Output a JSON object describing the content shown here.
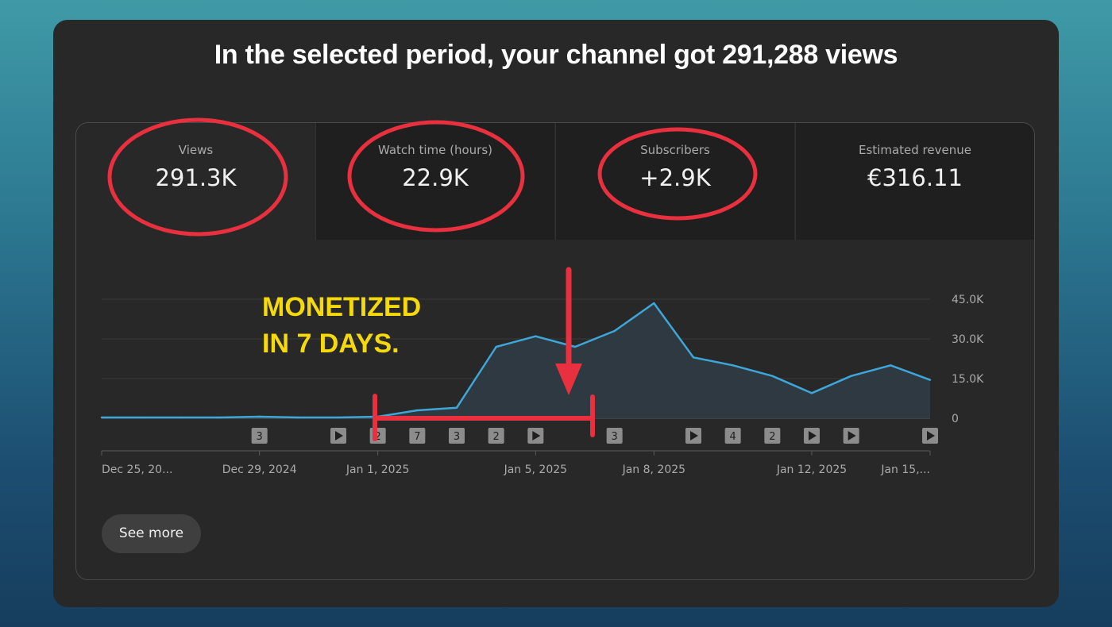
{
  "headline": "In the selected period, your channel got 291,288 views",
  "metrics": [
    {
      "label": "Views",
      "value": "291.3K"
    },
    {
      "label": "Watch time (hours)",
      "value": "22.9K"
    },
    {
      "label": "Subscribers",
      "value": "+2.9K"
    },
    {
      "label": "Estimated revenue",
      "value": "€316.11"
    }
  ],
  "annotation": {
    "line1": "MONETIZED",
    "line2": "IN 7 DAYS."
  },
  "see_more_label": "See more",
  "colors": {
    "line": "#3ea6d9",
    "highlight": "#e8303e",
    "annotation": "#f5d90a"
  },
  "chart_data": {
    "type": "area",
    "x": [
      "Dec 25",
      "Dec 26",
      "Dec 27",
      "Dec 28",
      "Dec 29",
      "Dec 30",
      "Dec 31",
      "Jan 1",
      "Jan 2",
      "Jan 3",
      "Jan 4",
      "Jan 5",
      "Jan 6",
      "Jan 7",
      "Jan 8",
      "Jan 9",
      "Jan 10",
      "Jan 11",
      "Jan 12",
      "Jan 13",
      "Jan 14",
      "Jan 15"
    ],
    "values": [
      300,
      300,
      300,
      300,
      600,
      300,
      300,
      600,
      3000,
      4000,
      27000,
      31000,
      27000,
      33000,
      43500,
      23000,
      20000,
      16000,
      9500,
      16000,
      20000,
      14500
    ],
    "y_ticks": [
      "0",
      "15.0K",
      "30.0K",
      "45.0K"
    ],
    "ylim": [
      0,
      45000
    ],
    "x_tick_labels": [
      {
        "index": 0,
        "label": "Dec 25, 20..."
      },
      {
        "index": 4,
        "label": "Dec 29, 2024"
      },
      {
        "index": 7,
        "label": "Jan 1, 2025"
      },
      {
        "index": 11,
        "label": "Jan 5, 2025"
      },
      {
        "index": 14,
        "label": "Jan 8, 2025"
      },
      {
        "index": 18,
        "label": "Jan 12, 2025"
      },
      {
        "index": 21,
        "label": "Jan 15,..."
      }
    ],
    "markers": [
      {
        "index": 4,
        "kind": "count",
        "label": "3"
      },
      {
        "index": 6,
        "kind": "play"
      },
      {
        "index": 7,
        "kind": "count",
        "label": "2"
      },
      {
        "index": 8,
        "kind": "count",
        "label": "7"
      },
      {
        "index": 9,
        "kind": "count",
        "label": "3"
      },
      {
        "index": 10,
        "kind": "count",
        "label": "2"
      },
      {
        "index": 11,
        "kind": "play"
      },
      {
        "index": 13,
        "kind": "count",
        "label": "3"
      },
      {
        "index": 15,
        "kind": "play"
      },
      {
        "index": 16,
        "kind": "count",
        "label": "4"
      },
      {
        "index": 17,
        "kind": "count",
        "label": "2"
      },
      {
        "index": 18,
        "kind": "play"
      },
      {
        "index": 19,
        "kind": "play"
      },
      {
        "index": 21,
        "kind": "play"
      }
    ],
    "grid": true
  }
}
